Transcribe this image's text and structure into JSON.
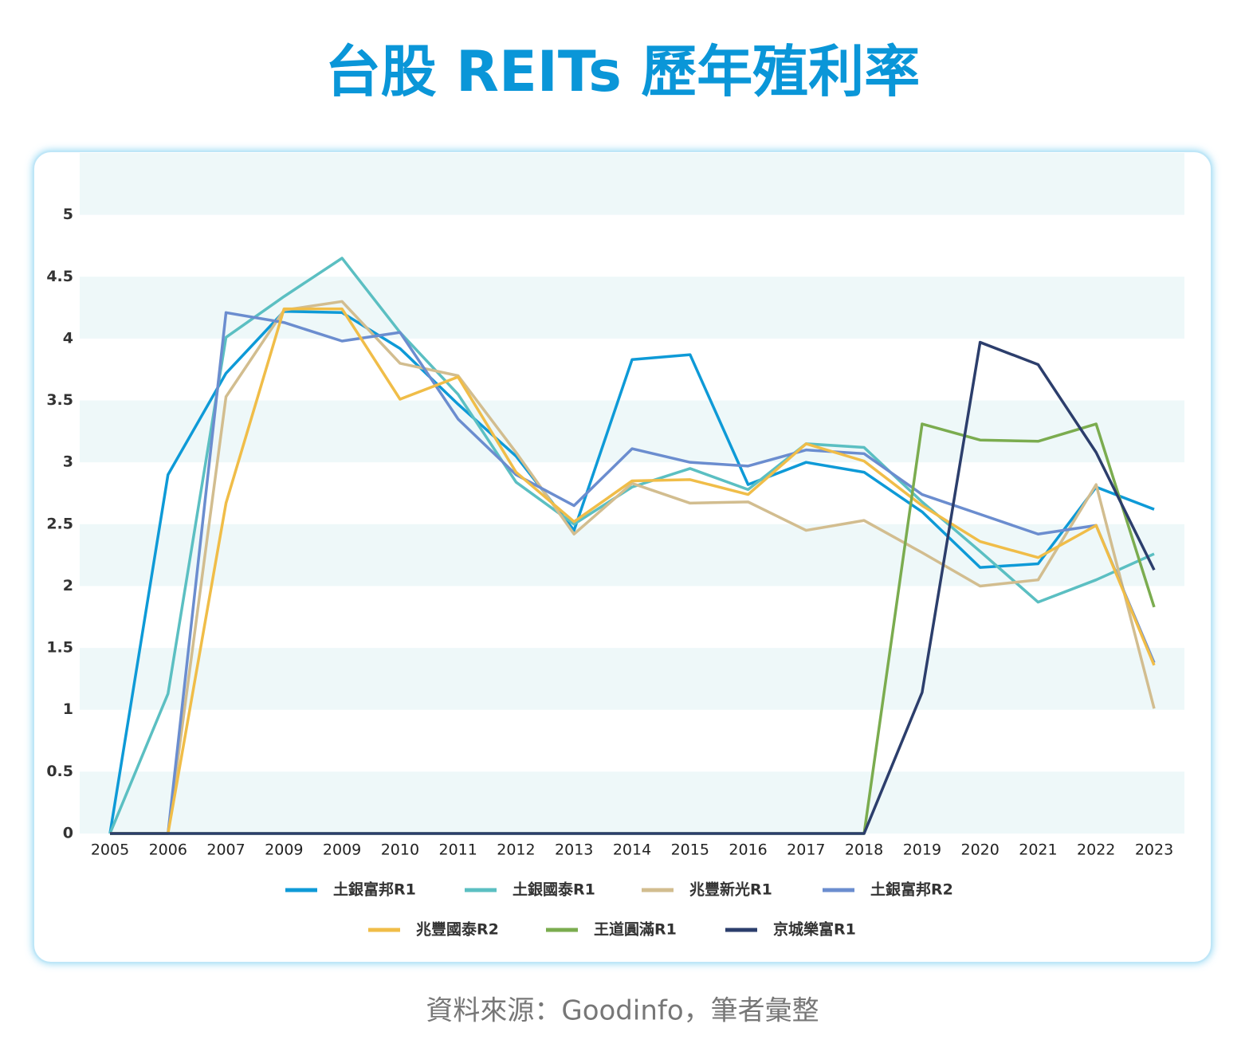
{
  "chart_data": {
    "type": "line",
    "title": "台股 REITs 歷年殖利率",
    "source": "資料來源：Goodinfo，筆者彙整",
    "categories": [
      "2005",
      "2006",
      "2007",
      "2009",
      "2009",
      "2010",
      "2011",
      "2012",
      "2013",
      "2014",
      "2015",
      "2016",
      "2017",
      "2018",
      "2019",
      "2020",
      "2021",
      "2022",
      "2023"
    ],
    "ylim": [
      0,
      5.5
    ],
    "yticks": [
      0,
      0.5,
      1,
      1.5,
      2,
      2.5,
      3,
      3.5,
      4,
      4.5,
      5
    ],
    "series": [
      {
        "name": "土銀富邦R1",
        "color": "#0e9ad7",
        "values": [
          0,
          2.9,
          3.72,
          4.22,
          4.21,
          3.92,
          3.47,
          3.05,
          2.45,
          3.83,
          3.87,
          2.82,
          3.0,
          2.92,
          2.6,
          2.15,
          2.18,
          2.8,
          2.62
        ]
      },
      {
        "name": "土銀國泰R1",
        "color": "#5bbfc2",
        "values": [
          0,
          1.13,
          4.01,
          4.34,
          4.65,
          4.05,
          3.55,
          2.84,
          2.5,
          2.8,
          2.95,
          2.78,
          3.15,
          3.12,
          2.68,
          2.28,
          1.87,
          2.05,
          2.26
        ]
      },
      {
        "name": "兆豐新光R1",
        "color": "#d2bd8f",
        "values": [
          0,
          0,
          3.53,
          4.23,
          4.3,
          3.8,
          3.7,
          3.08,
          2.42,
          2.83,
          2.67,
          2.68,
          2.45,
          2.53,
          2.27,
          2.0,
          2.05,
          2.82,
          1.01
        ]
      },
      {
        "name": "土銀富邦R2",
        "color": "#6b8dcf",
        "values": [
          0,
          0,
          4.21,
          4.13,
          3.98,
          4.05,
          3.35,
          2.9,
          2.65,
          3.11,
          3.0,
          2.97,
          3.1,
          3.07,
          2.74,
          2.58,
          2.42,
          2.49,
          1.38
        ]
      },
      {
        "name": "兆豐國泰R2",
        "color": "#f0bd48",
        "values": [
          0,
          0,
          2.67,
          4.24,
          4.24,
          3.51,
          3.69,
          2.92,
          2.52,
          2.85,
          2.86,
          2.74,
          3.15,
          3.01,
          2.65,
          2.36,
          2.23,
          2.49,
          1.36
        ]
      },
      {
        "name": "王道圓滿R1",
        "color": "#7bac4f",
        "values": [
          0,
          0,
          0,
          0,
          0,
          0,
          0,
          0,
          0,
          0,
          0,
          0,
          0,
          0,
          3.31,
          3.18,
          3.17,
          3.31,
          1.83
        ]
      },
      {
        "name": "京城樂富R1",
        "color": "#2c3e6c",
        "values": [
          0,
          0,
          0,
          0,
          0,
          0,
          0,
          0,
          0,
          0,
          0,
          0,
          0,
          0,
          1.14,
          3.97,
          3.79,
          3.08,
          2.13
        ]
      }
    ]
  }
}
